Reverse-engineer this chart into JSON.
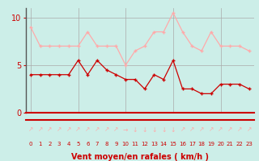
{
  "x": [
    0,
    1,
    2,
    3,
    4,
    5,
    6,
    7,
    8,
    9,
    10,
    11,
    12,
    13,
    14,
    15,
    16,
    17,
    18,
    19,
    20,
    21,
    22,
    23
  ],
  "wind_mean": [
    4,
    4,
    4,
    4,
    4,
    5.5,
    4,
    5.5,
    4.5,
    4,
    3.5,
    3.5,
    2.5,
    4,
    3.5,
    5.5,
    2.5,
    2.5,
    2,
    2,
    3,
    3,
    3,
    2.5
  ],
  "wind_gust": [
    9,
    7,
    7,
    7,
    7,
    7,
    8.5,
    7,
    7,
    7,
    5,
    6.5,
    7,
    8.5,
    8.5,
    10.5,
    8.5,
    7,
    6.5,
    8.5,
    7,
    7,
    7,
    6.5
  ],
  "mean_color": "#cc0000",
  "gust_color": "#ffaaaa",
  "background_color": "#cceee8",
  "grid_color": "#aaaaaa",
  "xlabel": "Vent moyen/en rafales ( km/h )",
  "xlabel_color": "#cc0000",
  "yticks": [
    0,
    5,
    10
  ],
  "ylim": [
    0,
    11
  ],
  "xlim": [
    -0.5,
    23.5
  ],
  "arrow_labels": [
    "↗",
    "↗",
    "↗",
    "↗",
    "↗",
    "↗",
    "↗",
    "↗",
    "↗",
    "↗",
    "→",
    "↓",
    "↓",
    "↓",
    "↓",
    "↓",
    "↗",
    "↗",
    "↗",
    "↗",
    "↗",
    "↗",
    "↗",
    "↗"
  ],
  "num_labels": [
    "0",
    "1",
    "2",
    "3",
    "4",
    "5",
    "6",
    "7",
    "8",
    "9",
    "10",
    "11",
    "12",
    "13",
    "14",
    "15",
    "16",
    "17",
    "18",
    "19",
    "20",
    "21",
    "22",
    "23"
  ]
}
